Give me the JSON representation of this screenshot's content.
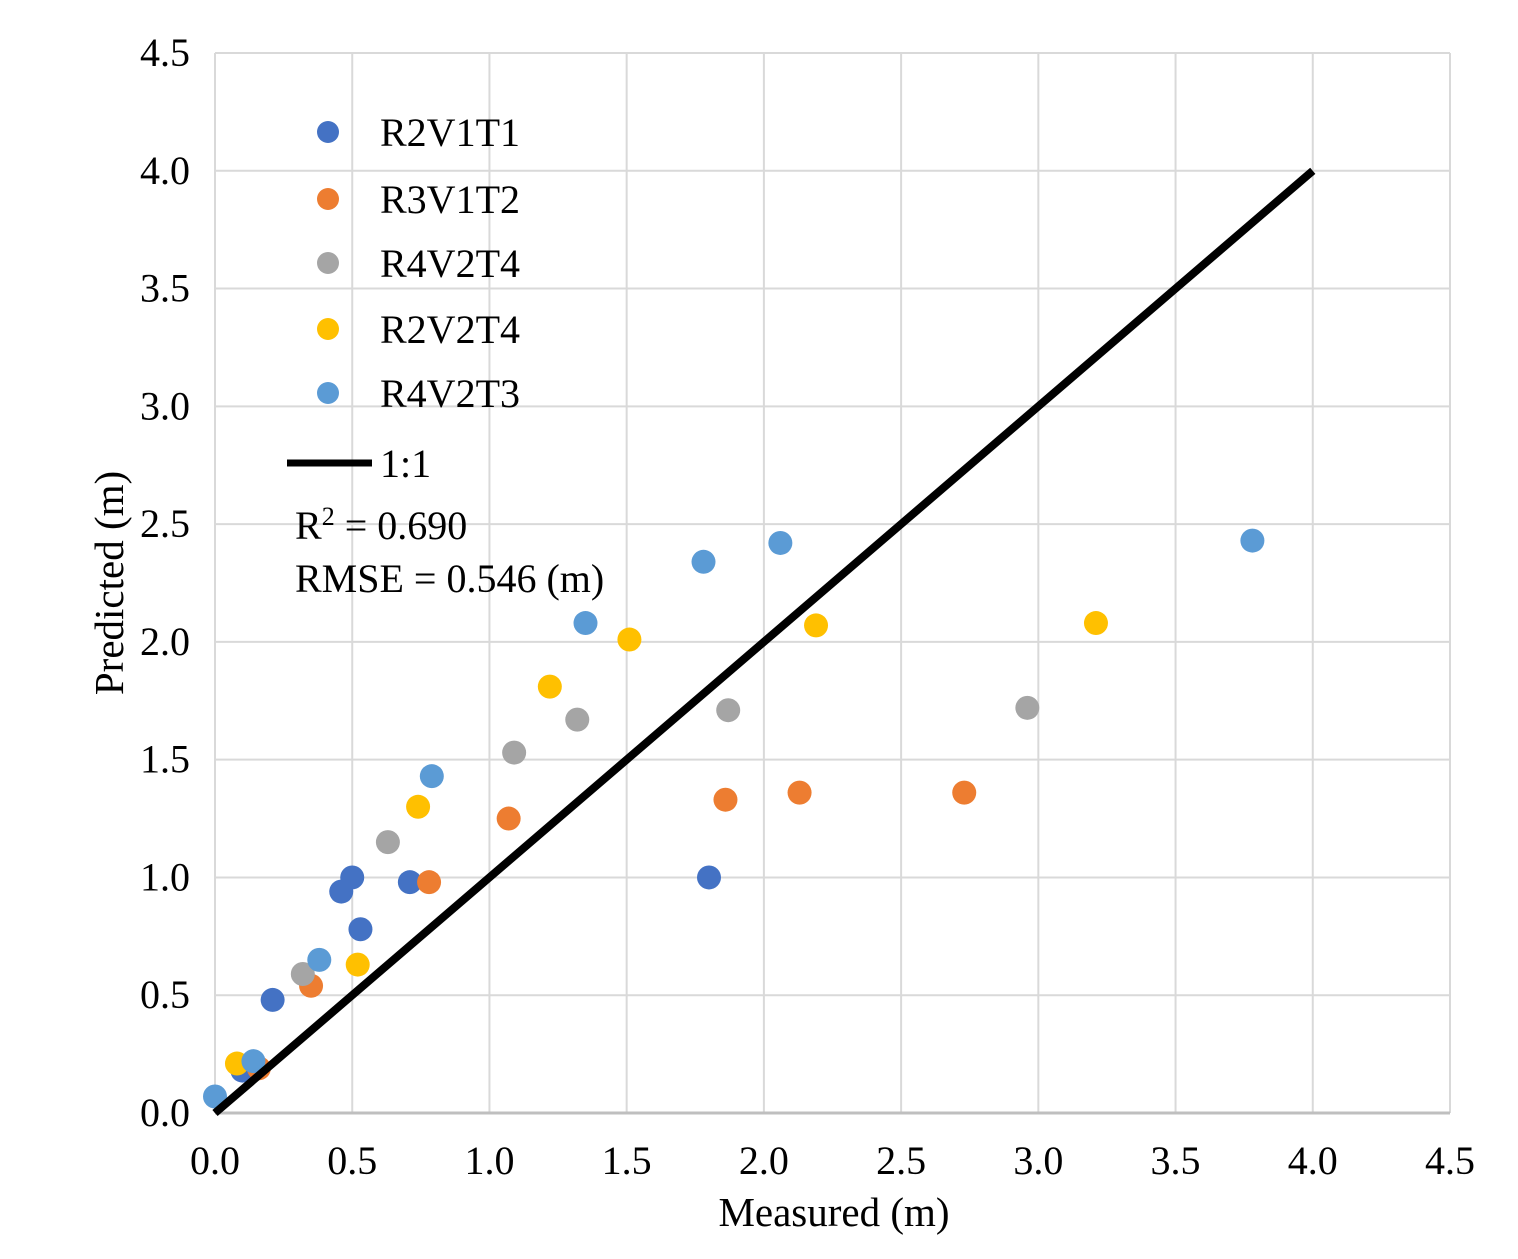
{
  "chart_data": {
    "type": "scatter",
    "title": "",
    "xlabel": "Measured (m)",
    "ylabel": "Predicted (m)",
    "xlim": [
      0,
      4.5
    ],
    "ylim": [
      0,
      4.5
    ],
    "grid": true,
    "gridline_color": "#D9D9D9",
    "axis_line_color": "#BFBFBF",
    "x_ticks": [
      "0.0",
      "0.5",
      "1.0",
      "1.5",
      "2.0",
      "2.5",
      "3.0",
      "3.5",
      "4.0",
      "4.5"
    ],
    "y_ticks": [
      "0.0",
      "0.5",
      "1.0",
      "1.5",
      "2.0",
      "2.5",
      "3.0",
      "3.5",
      "4.0",
      "4.5"
    ],
    "legend_position": "inside top-left",
    "series": [
      {
        "name": "R2V1T1",
        "color": "#4472C4",
        "points": [
          [
            0.1,
            0.18
          ],
          [
            0.21,
            0.48
          ],
          [
            0.46,
            0.94
          ],
          [
            0.5,
            1.0
          ],
          [
            0.53,
            0.78
          ],
          [
            0.71,
            0.98
          ],
          [
            1.8,
            1.0
          ]
        ]
      },
      {
        "name": "R3V1T2",
        "color": "#ED7D31",
        "points": [
          [
            0.16,
            0.19
          ],
          [
            0.35,
            0.54
          ],
          [
            0.78,
            0.98
          ],
          [
            1.07,
            1.25
          ],
          [
            1.86,
            1.33
          ],
          [
            2.13,
            1.36
          ],
          [
            2.73,
            1.36
          ]
        ]
      },
      {
        "name": "R4V2T4",
        "color": "#A5A5A5",
        "points": [
          [
            0.32,
            0.59
          ],
          [
            0.63,
            1.15
          ],
          [
            1.09,
            1.53
          ],
          [
            1.32,
            1.67
          ],
          [
            1.87,
            1.71
          ],
          [
            2.96,
            1.72
          ]
        ]
      },
      {
        "name": "R2V2T4",
        "color": "#FFC000",
        "points": [
          [
            0.08,
            0.21
          ],
          [
            0.52,
            0.63
          ],
          [
            0.74,
            1.3
          ],
          [
            1.22,
            1.81
          ],
          [
            1.51,
            2.01
          ],
          [
            2.19,
            2.07
          ],
          [
            3.21,
            2.08
          ]
        ]
      },
      {
        "name": "R4V2T3",
        "color": "#5B9BD5",
        "points": [
          [
            0.0,
            0.07
          ],
          [
            0.14,
            0.22
          ],
          [
            0.38,
            0.65
          ],
          [
            0.79,
            1.43
          ],
          [
            1.35,
            2.08
          ],
          [
            1.78,
            2.34
          ],
          [
            2.06,
            2.42
          ],
          [
            3.78,
            2.43
          ]
        ]
      }
    ],
    "reference_line": {
      "name": "1:1",
      "color": "#000000",
      "from": [
        0,
        0
      ],
      "to": [
        4,
        4
      ]
    },
    "annotations": {
      "r2": {
        "base": "R",
        "sup": "2",
        "rest": " = 0.690"
      },
      "rmse": "RMSE = 0.546 (m)"
    }
  }
}
